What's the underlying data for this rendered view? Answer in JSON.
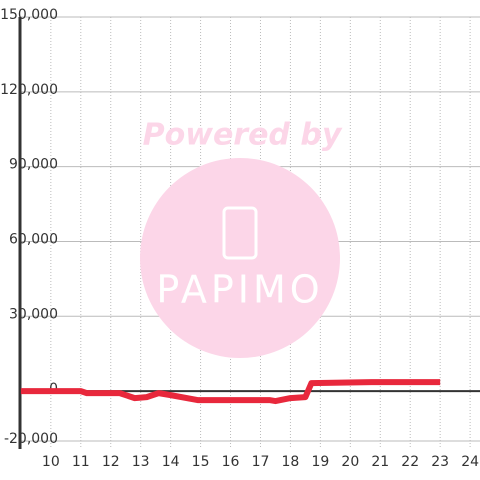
{
  "chart_data": {
    "type": "line",
    "watermark": [
      "Powered by",
      "PAPIMO"
    ],
    "x": [
      9,
      11,
      11.2,
      12.3,
      12.8,
      13.2,
      13.6,
      14,
      14.9,
      17.3,
      17.5,
      18,
      18.5,
      18.7,
      20.7,
      23
    ],
    "series": [
      {
        "color": "#e8283c",
        "values": [
          0,
          0,
          -800,
          -800,
          -2800,
          -2400,
          -800,
          -1600,
          -3600,
          -3600,
          -4000,
          -2800,
          -2400,
          3200,
          3600,
          3600
        ]
      }
    ],
    "xlim": [
      8.97,
      24.33
    ],
    "xticks": [
      10,
      11,
      12,
      13,
      14,
      15,
      16,
      17,
      18,
      19,
      20,
      21,
      22,
      23,
      24
    ],
    "ylim": [
      -20000,
      150000
    ],
    "yticks": [
      {
        "value": -20000,
        "label": "-20,000"
      },
      0,
      {
        "value": 30000,
        "label": "30,000"
      },
      {
        "value": 60000,
        "label": "60,000"
      },
      {
        "value": 90000,
        "label": "90,000"
      },
      {
        "value": 120000,
        "label": "120,000"
      },
      {
        "value": 150000,
        "label": "150,000"
      }
    ],
    "grid": true
  }
}
